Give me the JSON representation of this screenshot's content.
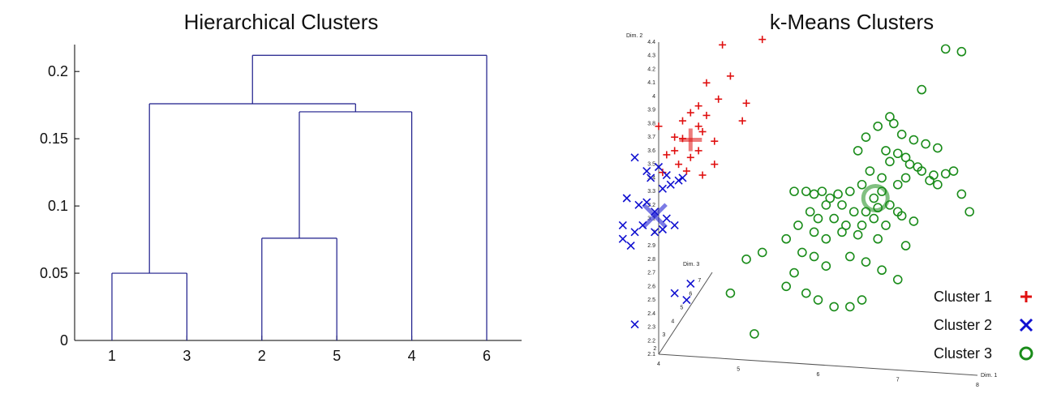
{
  "charts": {
    "dendrogram": {
      "title": "Hierarchical Clusters",
      "chart_data": {
        "type": "dendrogram",
        "title": "Hierarchical Clusters",
        "leaf_order": [
          "1",
          "3",
          "2",
          "5",
          "4",
          "6"
        ],
        "ylim": [
          0,
          0.22
        ],
        "yticks": [
          0,
          0.05,
          0.1,
          0.15,
          0.2
        ],
        "ytick_labels": [
          "0",
          "0.05",
          "0.1",
          "0.15",
          "0.2"
        ],
        "merges": [
          {
            "left": "1",
            "right": "3",
            "height": 0.05
          },
          {
            "left": "2",
            "right": "5",
            "height": 0.076
          },
          {
            "left": "(2,5)",
            "right": "4",
            "height": 0.17
          },
          {
            "left": "(1,3)",
            "right": "((2,5),4)",
            "height": 0.176
          },
          {
            "left": "((1,3),((2,5),4))",
            "right": "6",
            "height": 0.212
          }
        ],
        "color": "#1b1b8a"
      }
    },
    "kmeans": {
      "title": "k-Means Clusters",
      "chart_data": {
        "type": "scatter3d",
        "title": "k-Means Clusters",
        "axes": {
          "x": {
            "label": "Dim. 1",
            "ticks": [
              "4",
              "5",
              "6",
              "7",
              "8"
            ]
          },
          "y": {
            "label": "Dim. 2",
            "ticks": [
              "2.1",
              "2.2",
              "2.3",
              "2.4",
              "2.5",
              "2.6",
              "2.7",
              "2.8",
              "2.9",
              "3",
              "3.1",
              "3.2",
              "3.3",
              "3.4",
              "3.5",
              "3.6",
              "3.7",
              "3.8",
              "3.9",
              "4",
              "4.1",
              "4.2",
              "4.3",
              "4.4"
            ]
          },
          "z": {
            "label": "Dim. 3",
            "ticks": [
              "2",
              "3",
              "4",
              "5",
              "6",
              "7"
            ]
          }
        },
        "legend": {
          "placement": "bottom-right"
        },
        "series": [
          {
            "name": "Cluster 1",
            "marker": "plus",
            "color": "#e01010",
            "points": [
              [
                4.8,
                4.38
              ],
              [
                5.3,
                4.42
              ],
              [
                4.6,
                4.1
              ],
              [
                4.9,
                4.15
              ],
              [
                4.75,
                3.98
              ],
              [
                4.5,
                3.93
              ],
              [
                4.4,
                3.88
              ],
              [
                4.6,
                3.86
              ],
              [
                4.3,
                3.82
              ],
              [
                4.5,
                3.78
              ],
              [
                4.55,
                3.74
              ],
              [
                4.3,
                3.69
              ],
              [
                4.7,
                3.67
              ],
              [
                4.5,
                3.6
              ],
              [
                4.2,
                3.6
              ],
              [
                4.4,
                3.55
              ],
              [
                4.1,
                3.57
              ],
              [
                4.25,
                3.5
              ],
              [
                4.7,
                3.5
              ],
              [
                4.35,
                3.45
              ],
              [
                4.05,
                3.44
              ],
              [
                4.55,
                3.42
              ],
              [
                5.1,
                3.95
              ],
              [
                5.05,
                3.82
              ],
              [
                4.2,
                3.7
              ],
              [
                4.0,
                3.78
              ]
            ],
            "centroid": [
              4.4,
              3.68
            ]
          },
          {
            "name": "Cluster 2",
            "marker": "x",
            "color": "#1010d0",
            "points": [
              [
                3.7,
                3.55
              ],
              [
                3.85,
                3.45
              ],
              [
                4.0,
                3.48
              ],
              [
                4.1,
                3.42
              ],
              [
                3.6,
                3.25
              ],
              [
                3.75,
                3.2
              ],
              [
                3.85,
                3.22
              ],
              [
                4.05,
                3.32
              ],
              [
                4.15,
                3.35
              ],
              [
                4.25,
                3.38
              ],
              [
                3.95,
                3.15
              ],
              [
                4.1,
                3.1
              ],
              [
                4.2,
                3.05
              ],
              [
                3.55,
                3.05
              ],
              [
                3.7,
                3.0
              ],
              [
                3.95,
                3.0
              ],
              [
                4.05,
                3.02
              ],
              [
                3.8,
                3.05
              ],
              [
                3.55,
                2.95
              ],
              [
                3.65,
                2.9
              ],
              [
                4.2,
                2.55
              ],
              [
                4.35,
                2.5
              ],
              [
                4.4,
                2.62
              ],
              [
                3.7,
                2.32
              ],
              [
                3.9,
                3.4
              ],
              [
                4.3,
                3.4
              ]
            ],
            "centroid": [
              3.95,
              3.12
            ]
          },
          {
            "name": "Cluster 3",
            "marker": "circle",
            "color": "#1a8c1a",
            "points": [
              [
                7.6,
                4.35
              ],
              [
                7.8,
                4.33
              ],
              [
                7.3,
                4.05
              ],
              [
                6.9,
                3.85
              ],
              [
                6.95,
                3.8
              ],
              [
                6.75,
                3.78
              ],
              [
                7.05,
                3.72
              ],
              [
                7.2,
                3.68
              ],
              [
                7.35,
                3.65
              ],
              [
                6.6,
                3.7
              ],
              [
                6.85,
                3.6
              ],
              [
                7.0,
                3.58
              ],
              [
                7.1,
                3.55
              ],
              [
                6.5,
                3.6
              ],
              [
                6.9,
                3.52
              ],
              [
                7.15,
                3.5
              ],
              [
                7.25,
                3.48
              ],
              [
                7.3,
                3.45
              ],
              [
                7.45,
                3.42
              ],
              [
                7.6,
                3.43
              ],
              [
                7.7,
                3.45
              ],
              [
                7.4,
                3.38
              ],
              [
                7.5,
                3.35
              ],
              [
                7.1,
                3.4
              ],
              [
                7.0,
                3.35
              ],
              [
                6.8,
                3.3
              ],
              [
                6.7,
                3.25
              ],
              [
                6.55,
                3.35
              ],
              [
                6.4,
                3.3
              ],
              [
                6.25,
                3.28
              ],
              [
                6.15,
                3.25
              ],
              [
                6.05,
                3.3
              ],
              [
                5.95,
                3.28
              ],
              [
                5.85,
                3.3
              ],
              [
                5.7,
                3.3
              ],
              [
                6.1,
                3.2
              ],
              [
                6.3,
                3.2
              ],
              [
                6.45,
                3.15
              ],
              [
                6.6,
                3.15
              ],
              [
                6.75,
                3.18
              ],
              [
                6.9,
                3.2
              ],
              [
                7.0,
                3.15
              ],
              [
                5.9,
                3.15
              ],
              [
                6.0,
                3.1
              ],
              [
                6.2,
                3.1
              ],
              [
                6.35,
                3.05
              ],
              [
                6.55,
                3.05
              ],
              [
                6.7,
                3.1
              ],
              [
                6.85,
                3.05
              ],
              [
                7.05,
                3.12
              ],
              [
                7.2,
                3.08
              ],
              [
                5.75,
                3.05
              ],
              [
                5.95,
                3.0
              ],
              [
                6.1,
                2.95
              ],
              [
                6.3,
                3.0
              ],
              [
                6.5,
                2.98
              ],
              [
                6.75,
                2.95
              ],
              [
                7.1,
                2.9
              ],
              [
                5.6,
                2.95
              ],
              [
                5.8,
                2.85
              ],
              [
                5.95,
                2.82
              ],
              [
                6.1,
                2.75
              ],
              [
                6.4,
                2.82
              ],
              [
                6.6,
                2.78
              ],
              [
                6.8,
                2.72
              ],
              [
                7.0,
                2.65
              ],
              [
                5.7,
                2.7
              ],
              [
                5.85,
                2.55
              ],
              [
                6.0,
                2.5
              ],
              [
                6.2,
                2.45
              ],
              [
                6.4,
                2.45
              ],
              [
                6.55,
                2.5
              ],
              [
                5.6,
                2.6
              ],
              [
                5.3,
                2.85
              ],
              [
                5.1,
                2.8
              ],
              [
                4.9,
                2.55
              ],
              [
                5.2,
                2.25
              ],
              [
                7.5,
                3.62
              ],
              [
                7.8,
                3.28
              ],
              [
                7.9,
                3.15
              ],
              [
                6.8,
                3.4
              ],
              [
                6.65,
                3.45
              ]
            ],
            "centroid": [
              6.72,
              3.25
            ]
          }
        ]
      }
    }
  }
}
